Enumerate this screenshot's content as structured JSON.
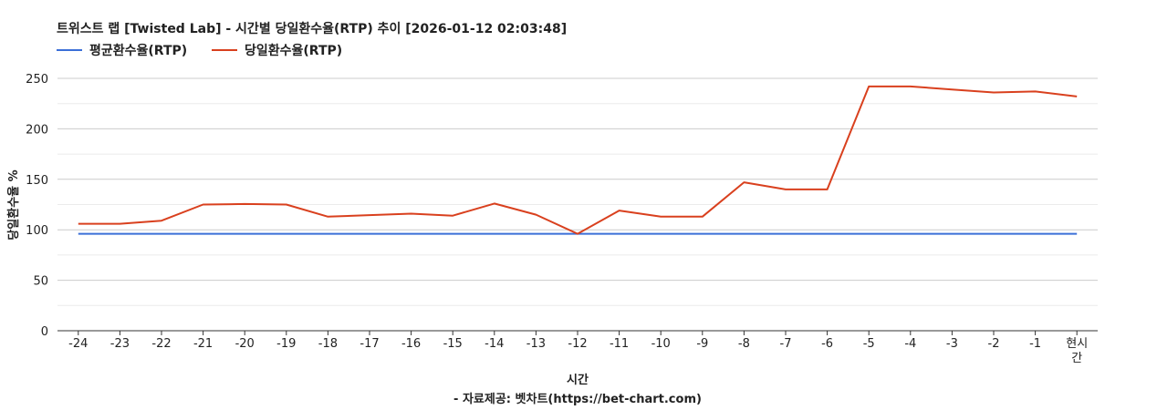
{
  "chart_data": {
    "type": "line",
    "title": "트위스트 랩 [Twisted Lab] - 시간별 당일환수율(RTP) 추이 [2026-01-12 02:03:48]",
    "xlabel": "시간",
    "ylabel": "당일환수율 %",
    "credit": "- 자료제공: 벳차트(https://bet-chart.com)",
    "categories": [
      "-24",
      "-23",
      "-22",
      "-21",
      "-20",
      "-19",
      "-18",
      "-17",
      "-16",
      "-15",
      "-14",
      "-13",
      "-12",
      "-11",
      "-10",
      "-9",
      "-8",
      "-7",
      "-6",
      "-5",
      "-4",
      "-3",
      "-2",
      "-1",
      "현시간"
    ],
    "ylim": [
      0,
      250
    ],
    "yticks": [
      0,
      50,
      100,
      150,
      200,
      250
    ],
    "grid": true,
    "legend_position": "top-left",
    "series": [
      {
        "name": "평균환수율(RTP)",
        "color": "#3b6fd8",
        "values": [
          96,
          96,
          96,
          96,
          96,
          96,
          96,
          96,
          96,
          96,
          96,
          96,
          96,
          96,
          96,
          96,
          96,
          96,
          96,
          96,
          96,
          96,
          96,
          96,
          96
        ]
      },
      {
        "name": "당일환수율(RTP)",
        "color": "#d9401e",
        "values": [
          106,
          106,
          109,
          125,
          125.5,
          125,
          113,
          114.5,
          116,
          114,
          126,
          115,
          96,
          119,
          113,
          113,
          147,
          140,
          140,
          242,
          242,
          239,
          236,
          237,
          232
        ]
      }
    ]
  }
}
